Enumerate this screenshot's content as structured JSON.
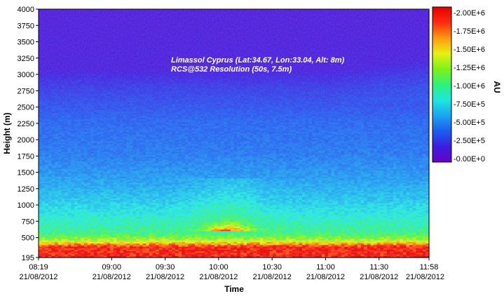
{
  "chart_data": {
    "type": "heatmap",
    "title": "",
    "annotation": [
      "Limassol Cyprus (Lat:34.67, Lon:33.04, Alt: 8m)",
      "RCS@532 Resolution (50s, 7.5m)"
    ],
    "xlabel": "Time",
    "ylabel": "Height (m)",
    "colorbar_label": "AU",
    "x_ticks": [
      {
        "time": "08:19",
        "date": "21/08/2012"
      },
      {
        "time": "09:00",
        "date": "21/08/2012"
      },
      {
        "time": "09:30",
        "date": "21/08/2012"
      },
      {
        "time": "10:00",
        "date": "21/08/2012"
      },
      {
        "time": "10:30",
        "date": "21/08/2012"
      },
      {
        "time": "11:00",
        "date": "21/08/2012"
      },
      {
        "time": "11:30",
        "date": "21/08/2012"
      },
      {
        "time": "11:58",
        "date": "21/08/2012"
      }
    ],
    "xlim": [
      "08:19",
      "11:58"
    ],
    "y_ticks": [
      195,
      500,
      750,
      1000,
      1250,
      1500,
      1750,
      2000,
      2250,
      2500,
      2750,
      3000,
      3250,
      3500,
      3750,
      4000
    ],
    "ylim": [
      195,
      4000
    ],
    "colorbar_ticks": [
      "-0.00E+0",
      "-2.50E+5",
      "-5.00E+5",
      "-7.50E+5",
      "-1.00E+6",
      "-1.25E+6",
      "-1.50E+6",
      "-1.75E+6",
      "-2.00E+6"
    ],
    "colorbar_range": [
      0,
      2000000
    ],
    "profile": {
      "description_heights_m": [
        195,
        350,
        420,
        480,
        560,
        700,
        900,
        1100,
        1400,
        1800,
        2300,
        2800,
        3100,
        4000
      ],
      "typical_values": [
        1900000,
        1900000,
        1500000,
        1200000,
        1000000,
        900000,
        780000,
        680000,
        560000,
        460000,
        400000,
        270000,
        160000,
        140000
      ]
    },
    "colormap": [
      "#6a00c8",
      "#3a1ee0",
      "#1e5cf0",
      "#19a6f0",
      "#1fe6e0",
      "#30f07a",
      "#7cf21a",
      "#e8f010",
      "#ff9a10",
      "#ff2a10",
      "#e60000"
    ],
    "grid": false
  }
}
